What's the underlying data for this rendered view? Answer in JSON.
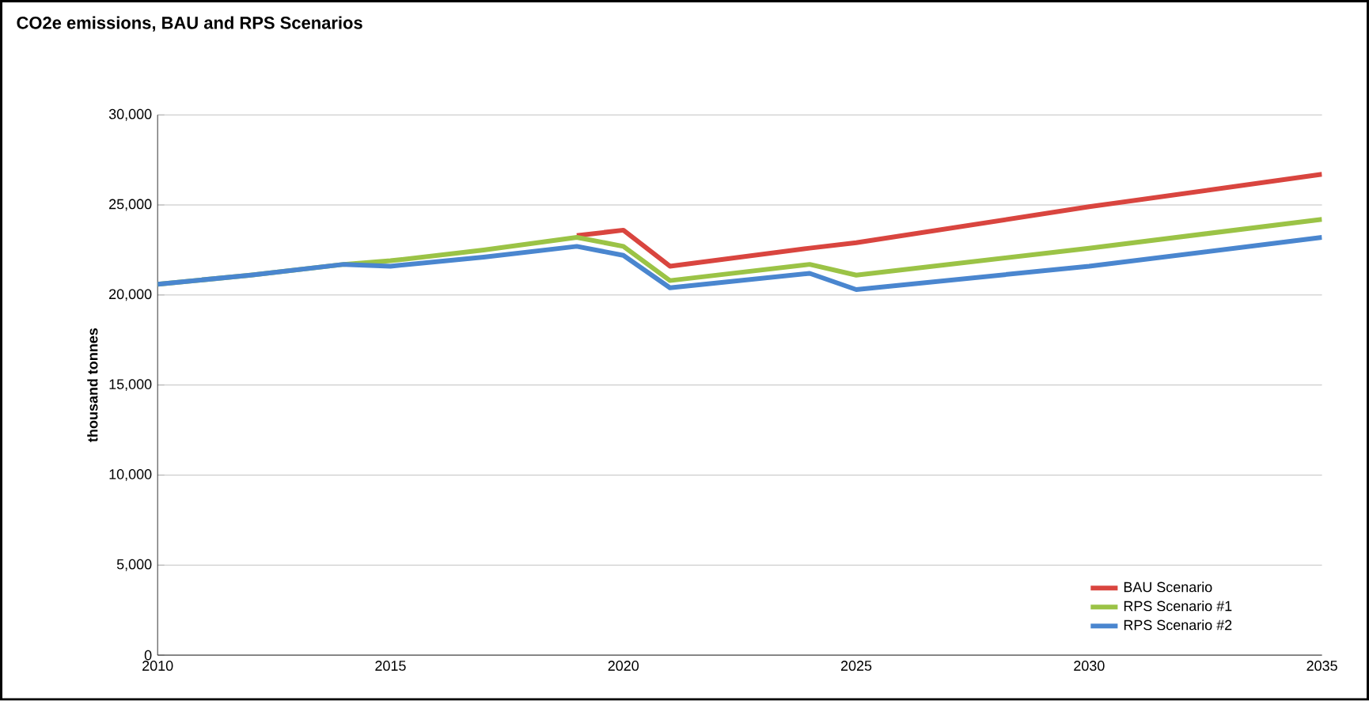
{
  "chart_data": {
    "type": "line",
    "title": "CO2e emissions, BAU and RPS Scenarios",
    "ylabel": "thousand tonnes",
    "xlim": [
      2010,
      2035
    ],
    "xticks": [
      2010,
      2015,
      2020,
      2025,
      2030,
      2035
    ],
    "ylim": [
      0,
      30000
    ],
    "yticks": [
      {
        "value": 0,
        "label": "0"
      },
      {
        "value": 5000,
        "label": "5,000"
      },
      {
        "value": 10000,
        "label": "10,000"
      },
      {
        "value": 15000,
        "label": "15,000"
      },
      {
        "value": 20000,
        "label": "20,000"
      },
      {
        "value": 25000,
        "label": "25,000"
      },
      {
        "value": 30000,
        "label": "30,000"
      }
    ],
    "grid": "y",
    "legend": "bottom right",
    "marker": "none",
    "line_style": "solid",
    "series": [
      {
        "name": "BAU Scenario",
        "color": "#d9453f",
        "x": [
          2019,
          2020,
          2021,
          2024,
          2025,
          2030,
          2035
        ],
        "values": [
          23300,
          23600,
          21600,
          22600,
          22900,
          24900,
          26700
        ]
      },
      {
        "name": "RPS Scenario #1",
        "color": "#9bc346",
        "x": [
          2010,
          2012,
          2014,
          2015,
          2017,
          2019,
          2020,
          2021,
          2024,
          2025,
          2030,
          2035
        ],
        "values": [
          20600,
          21100,
          21700,
          21900,
          22500,
          23200,
          22700,
          20800,
          21700,
          21100,
          22600,
          24200
        ]
      },
      {
        "name": "RPS Scenario #2",
        "color": "#4a86cf",
        "x": [
          2010,
          2012,
          2014,
          2015,
          2017,
          2019,
          2020,
          2021,
          2024,
          2025,
          2030,
          2035
        ],
        "values": [
          20600,
          21100,
          21700,
          21600,
          22100,
          22700,
          22200,
          20400,
          21200,
          20300,
          21600,
          23200
        ]
      }
    ]
  }
}
